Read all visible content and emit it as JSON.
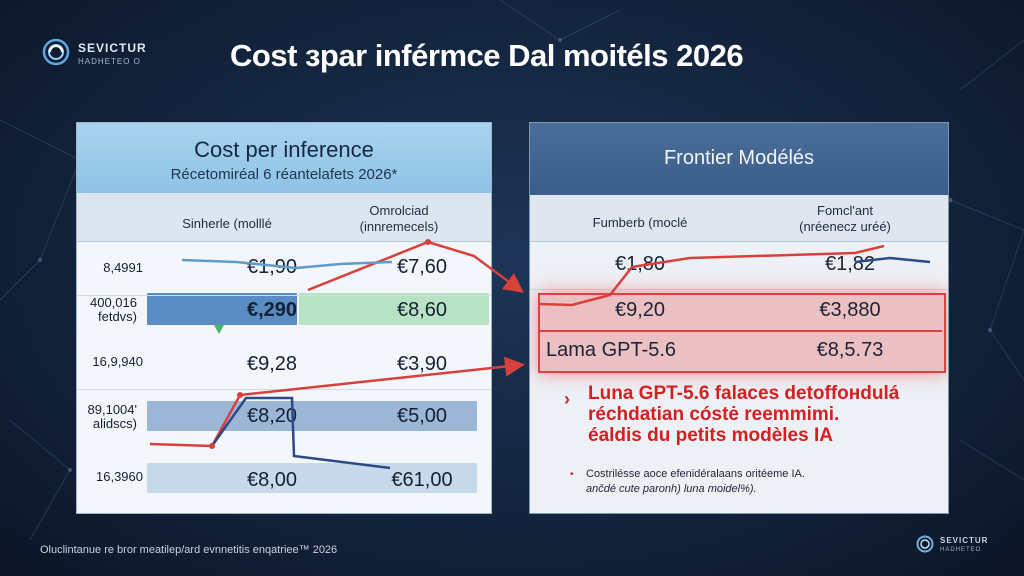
{
  "brand": {
    "name": "SEVICTUR",
    "sub": "HADHETEO O"
  },
  "title": "Cost зpar inférmce Dal moitéls 2026",
  "left_panel": {
    "title": "Cost per inference",
    "subtitle": "Récetomiréal 6 réantelafets 2026*",
    "col_a": "Sinherle (molllé",
    "col_b_line1": "Omrolciad",
    "col_b_line2": "(innremecels)",
    "rows": [
      {
        "label": "8,4991",
        "a": "€1,90",
        "b": "€7,60"
      },
      {
        "label": "400,016 fetdvs)",
        "a": "€,290",
        "b": "€8,60"
      },
      {
        "label": "16,9,940",
        "a": "€9,28",
        "b": "€3,90"
      },
      {
        "label": "89,1004' alidscs)",
        "a": "€8,20",
        "b": "€5,00"
      },
      {
        "label": "16,3960",
        "a": "€8,00",
        "b": "€61,00"
      }
    ]
  },
  "right_panel": {
    "title": "Frontier Modélés",
    "col_a": "Fumberb (moclé",
    "col_b_line1": "Fomcl'ant",
    "col_b_line2": "(nréenecz uréé)",
    "rows": [
      {
        "a": "€1,80",
        "b": "€1,82"
      },
      {
        "a": "€9,20",
        "b": "€3,880"
      },
      {
        "a": "Lama GPT-5.6",
        "b": "€8,5.73"
      }
    ],
    "note_lines": [
      "Luna GPT-5.6 falaces detoffoнdulá",
      "réchdatian cóstė reemmimi.",
      "éaldis du petits modèles IA"
    ],
    "note_small_1": "Costrilésse aoce efenidéralaans oritéeme IA.",
    "note_small_2": "ančdé cute paronh) luna moidel%)."
  },
  "footer": {
    "text": "Oluclintanue re bror meatilep/ard evnnetitis enqatriee™ 2026",
    "brand": "SEVICTUR",
    "brand_sub": "HADHETEO"
  },
  "colors": {
    "accent_red": "#d42020",
    "blue_line": "#2c4a86",
    "light_blue_line": "#5e9ccc"
  }
}
